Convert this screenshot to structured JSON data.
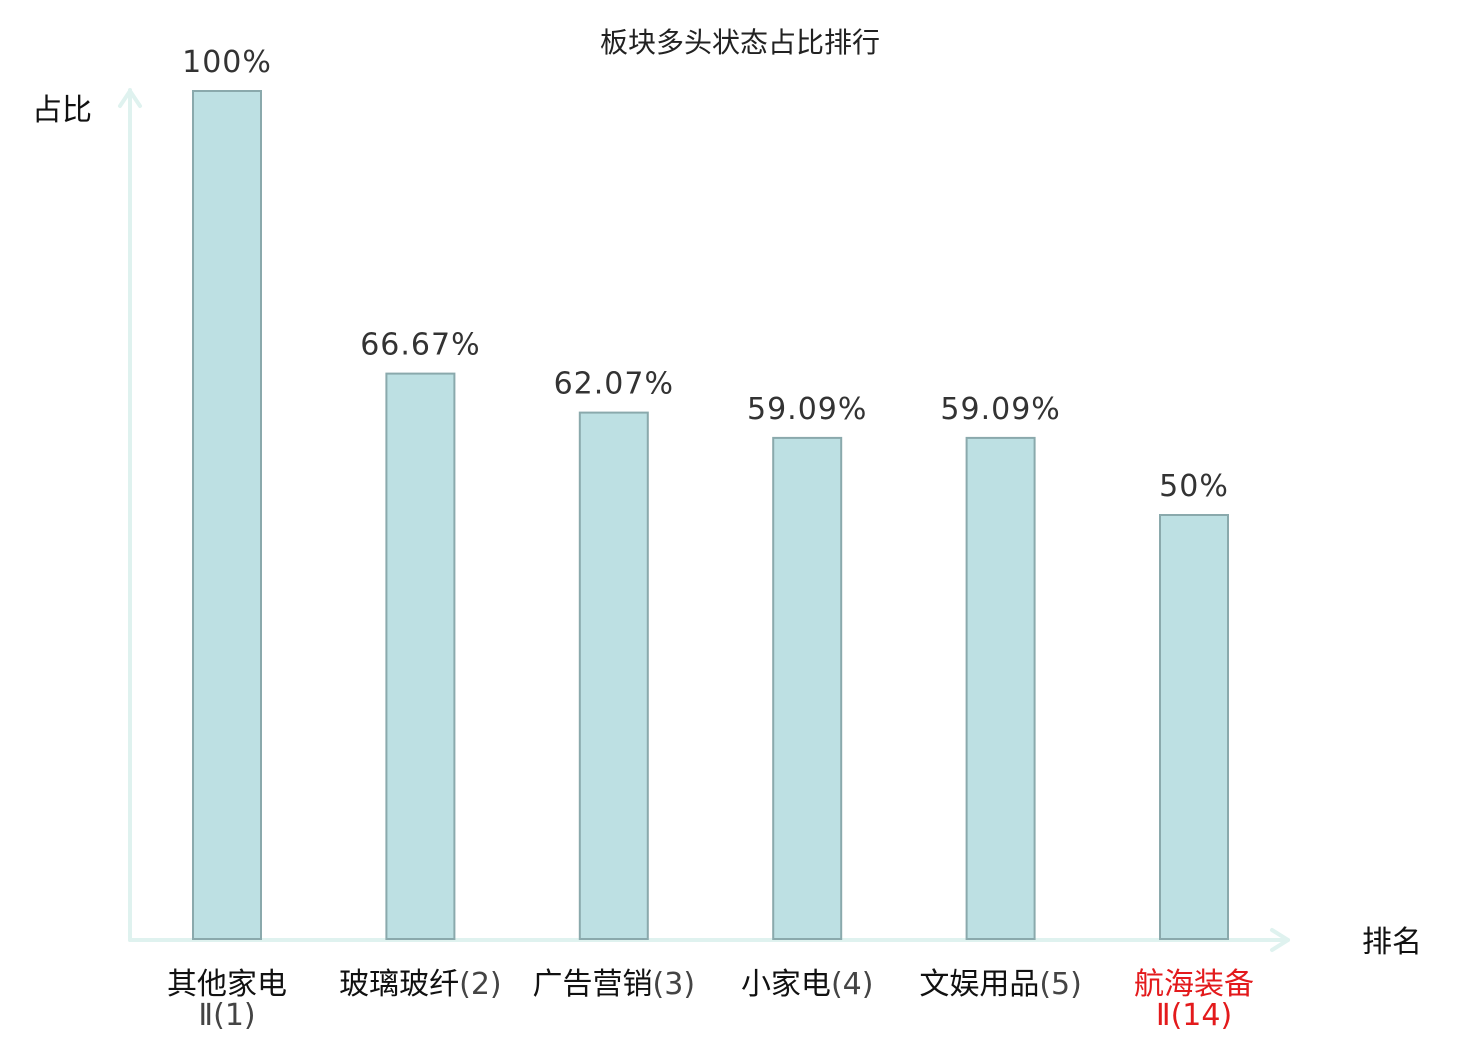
{
  "chart_data": {
    "type": "bar",
    "title": "板块多头状态占比排行",
    "ylabel": "占比",
    "xlabel": "排名",
    "ylim": [
      0,
      100
    ],
    "grid": false,
    "categories": [
      {
        "name": "其他家电",
        "rank": "Ⅱ(1)",
        "highlight": false
      },
      {
        "name": "玻璃玻纤",
        "rank": "(2)",
        "highlight": false
      },
      {
        "name": "广告营销",
        "rank": "(3)",
        "highlight": false
      },
      {
        "name": "小家电",
        "rank": "(4)",
        "highlight": false
      },
      {
        "name": "文娱用品",
        "rank": "(5)",
        "highlight": false
      },
      {
        "name": "航海装备",
        "rank": "Ⅱ(14)",
        "highlight": true
      }
    ],
    "values": [
      100,
      66.67,
      62.07,
      59.09,
      59.09,
      50
    ],
    "value_labels": [
      "100%",
      "66.67%",
      "62.07%",
      "59.09%",
      "59.09%",
      "50%"
    ],
    "colors": {
      "bar_fill": "#bde0e3",
      "bar_stroke": "#8aa9ac",
      "axis": "#dff2ef",
      "highlight_text": "#e31a1c"
    }
  }
}
